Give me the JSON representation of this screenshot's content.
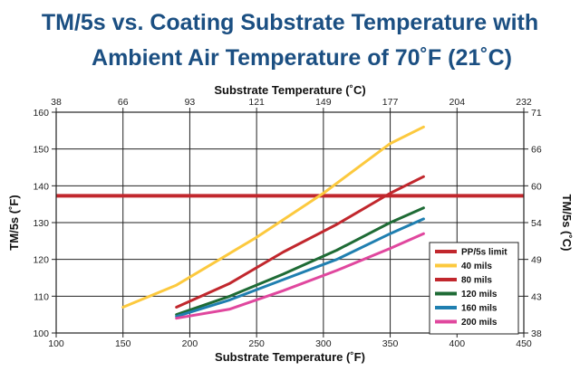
{
  "title": {
    "line1": "TM/5s vs. Coating Substrate Temperature with",
    "line2": "Ambient Air Temperature of 70˚F (21˚C)"
  },
  "chart_data": {
    "type": "line",
    "xlabel": "Substrate Temperature (˚F)",
    "x2label": "Substrate Temperature (˚C)",
    "ylabel": "TM/5s (˚F)",
    "y2label": "TM/5s (˚C)",
    "xlim": [
      100,
      450
    ],
    "ylim": [
      100,
      160
    ],
    "x_ticks": [
      "100",
      "150",
      "200",
      "250",
      "300",
      "350",
      "400",
      "450"
    ],
    "x_ticks_values": [
      100,
      150,
      200,
      250,
      300,
      350,
      400,
      450
    ],
    "y_ticks": [
      "100",
      "110",
      "120",
      "130",
      "140",
      "150",
      "160"
    ],
    "y_ticks_values": [
      100,
      110,
      120,
      130,
      140,
      150,
      160
    ],
    "x2_ticks": [
      "38",
      "66",
      "93",
      "121",
      "149",
      "177",
      "204",
      "232"
    ],
    "y2_ticks": [
      "38",
      "43",
      "49",
      "54",
      "60",
      "66",
      "71"
    ],
    "grid": true,
    "legend_position": "bottom-right",
    "reference_line": {
      "name": "PP/5s limit",
      "y": 137.3,
      "color": "#c1272d"
    },
    "series": [
      {
        "name": "40 mils",
        "color": "#fcc93e",
        "x": [
          150,
          190,
          250,
          300,
          350,
          375
        ],
        "y": [
          107,
          113,
          126,
          138,
          151.5,
          156
        ]
      },
      {
        "name": "80 mils",
        "color": "#c1272d",
        "x": [
          190,
          230,
          270,
          310,
          350,
          375
        ],
        "y": [
          107,
          113.5,
          122,
          129.5,
          138,
          142.5
        ]
      },
      {
        "name": "120 mils",
        "color": "#1e6b35",
        "x": [
          190,
          230,
          270,
          310,
          350,
          375
        ],
        "y": [
          105,
          110,
          116,
          122.5,
          130,
          134
        ]
      },
      {
        "name": "160 mils",
        "color": "#1f7fb0",
        "x": [
          190,
          230,
          270,
          310,
          350,
          375
        ],
        "y": [
          104.5,
          109,
          114.5,
          120,
          127,
          131
        ]
      },
      {
        "name": "200 mils",
        "color": "#e0479e",
        "x": [
          190,
          230,
          270,
          310,
          350,
          375
        ],
        "y": [
          104,
          106.5,
          111.5,
          117,
          123,
          127
        ]
      }
    ]
  }
}
